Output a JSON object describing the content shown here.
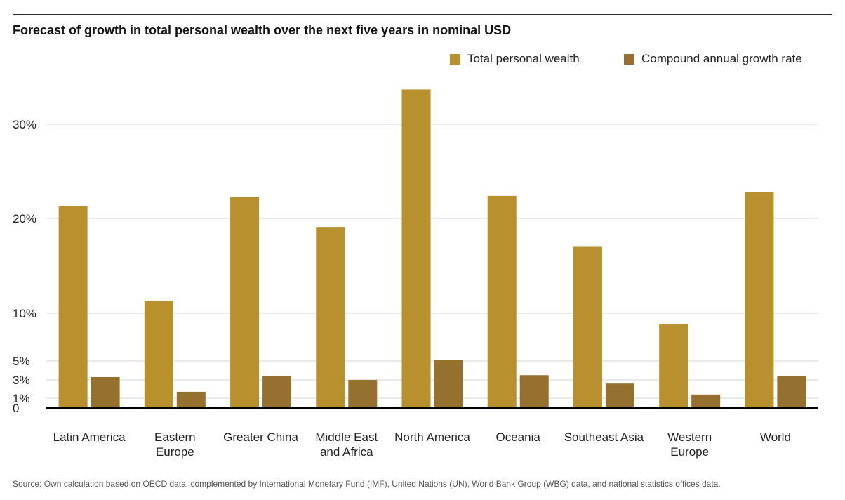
{
  "chart_data": {
    "type": "bar",
    "title": "Forecast of growth in total personal wealth over the next five years in nominal USD",
    "categories": [
      [
        "Latin America"
      ],
      [
        "Eastern",
        "Europe"
      ],
      [
        "Greater China"
      ],
      [
        "Middle East",
        "and Africa"
      ],
      [
        "North America"
      ],
      [
        "Oceania"
      ],
      [
        "Southeast Asia"
      ],
      [
        "Western",
        "Europe"
      ],
      [
        "World"
      ]
    ],
    "series": [
      {
        "name": "Total personal wealth",
        "color": "#b8902e",
        "values": [
          21.3,
          11.3,
          22.3,
          19.1,
          33.7,
          22.4,
          17.0,
          8.9,
          22.8
        ]
      },
      {
        "name": "Compound annual growth rate",
        "color": "#96702f",
        "values": [
          3.3,
          1.7,
          3.4,
          3.0,
          5.1,
          3.5,
          2.6,
          1.4,
          3.4
        ]
      }
    ],
    "y_ticks": [
      0,
      1,
      3,
      5,
      10,
      20,
      30
    ],
    "y_tick_labels": [
      "0",
      "1%",
      "3%",
      "5%",
      "10%",
      "20%",
      "30%"
    ],
    "ylim": [
      0,
      35
    ],
    "grid": true,
    "legend_position": "top-right"
  },
  "source": "Source: Own calculation based on OECD data, complemented by International Monetary Fund (IMF), United Nations (UN), World Bank Group (WBG) data, and national statistics offices data."
}
